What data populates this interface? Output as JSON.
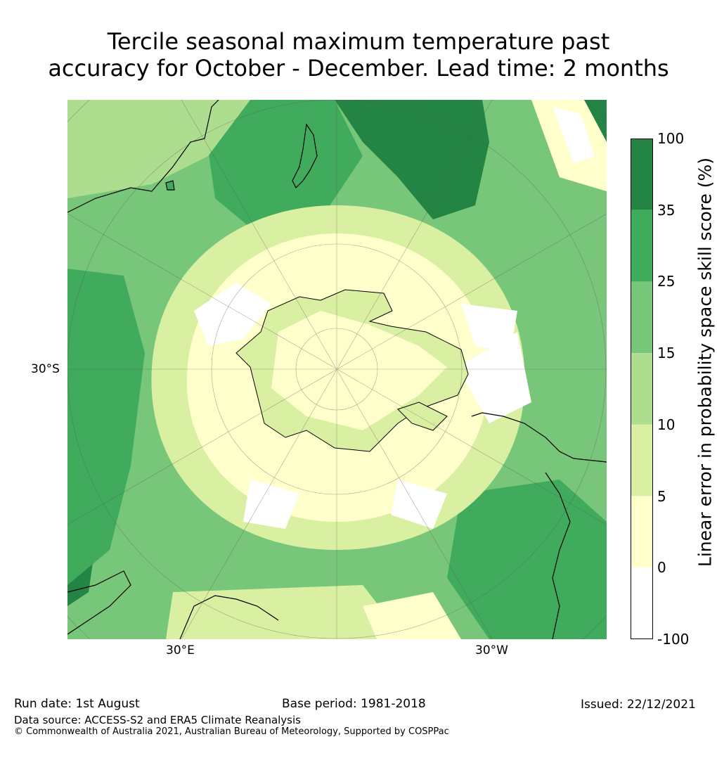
{
  "title": "Tercile seasonal maximum temperature past\naccuracy for October - December. Lead time: 2 months",
  "map": {
    "projection": "south-polar-stereographic",
    "lat_label": "30°S",
    "lon_labels": [
      "30°E",
      "30°W"
    ]
  },
  "colorbar": {
    "label": "Linear error in probability space skill score (%)",
    "ticks": [
      "100",
      "35",
      "25",
      "15",
      "10",
      "5",
      "0",
      "-100"
    ],
    "bins": [
      {
        "from": -100,
        "to": 0,
        "color": "#ffffff"
      },
      {
        "from": 0,
        "to": 5,
        "color": "#ffffcc"
      },
      {
        "from": 5,
        "to": 10,
        "color": "#d9f0a3"
      },
      {
        "from": 10,
        "to": 15,
        "color": "#addd8e"
      },
      {
        "from": 15,
        "to": 25,
        "color": "#78c679"
      },
      {
        "from": 25,
        "to": 35,
        "color": "#41ab5d"
      },
      {
        "from": 35,
        "to": 100,
        "color": "#238443"
      }
    ]
  },
  "footer": {
    "run_date": "Run date: 1st August",
    "base_period": "Base period: 1981-2018",
    "issued": "Issued: 22/12/2021",
    "data_source": "Data source: ACCESS-S2 and ERA5 Climate Reanalysis",
    "copyright": "© Commonwealth of Australia 2021, Australian Bureau of Meteorology, Supported by COSPPac"
  }
}
